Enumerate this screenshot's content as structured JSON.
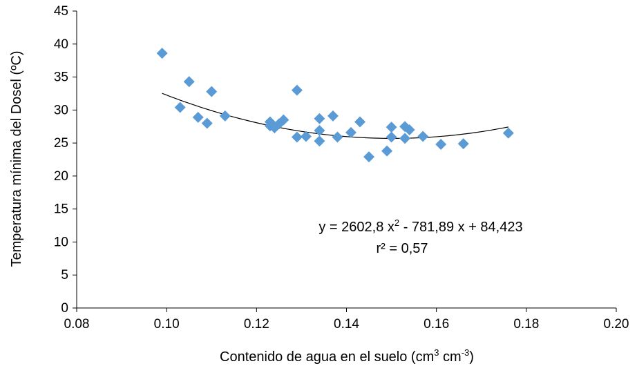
{
  "chart_data": {
    "type": "scatter",
    "title": "",
    "xlabel": {
      "prefix": "Contenido de agua en el suelo (cm",
      "sup1": "3",
      "mid": " cm",
      "sup2": "-3",
      "suffix": ")"
    },
    "ylabel": "Temperatura mínima del Dosel (ºC)",
    "xlim": [
      0.08,
      0.2
    ],
    "ylim": [
      0,
      45
    ],
    "x_ticks": [
      0.08,
      0.1,
      0.12,
      0.14,
      0.16,
      0.18,
      0.2
    ],
    "x_tick_labels": [
      "0.08",
      "0.10",
      "0.12",
      "0.14",
      "0.16",
      "0.18",
      "0.20"
    ],
    "y_ticks": [
      0,
      5,
      10,
      15,
      20,
      25,
      30,
      35,
      40,
      45
    ],
    "y_tick_labels": [
      "0",
      "5",
      "10",
      "15",
      "20",
      "25",
      "30",
      "35",
      "40",
      "45"
    ],
    "grid": false,
    "marker": {
      "shape": "diamond",
      "color": "#5b9bd5"
    },
    "trendline": {
      "type": "polynomial-2",
      "coefficients": {
        "a": 2602.8,
        "b": -781.89,
        "c": 84.423
      },
      "x_range": [
        0.099,
        0.176
      ],
      "color": "#000000"
    },
    "equation": {
      "part1": "y = 2602,8 x",
      "sup": "2",
      "part2": " - 781,89 x + 84,423",
      "r2": "r² = 0,57"
    },
    "points": [
      {
        "x": 0.099,
        "y": 38.6
      },
      {
        "x": 0.103,
        "y": 30.4
      },
      {
        "x": 0.105,
        "y": 34.3
      },
      {
        "x": 0.107,
        "y": 28.9
      },
      {
        "x": 0.109,
        "y": 28.0
      },
      {
        "x": 0.11,
        "y": 32.8
      },
      {
        "x": 0.113,
        "y": 29.1
      },
      {
        "x": 0.123,
        "y": 28.2
      },
      {
        "x": 0.123,
        "y": 27.6
      },
      {
        "x": 0.124,
        "y": 27.3
      },
      {
        "x": 0.125,
        "y": 27.9
      },
      {
        "x": 0.126,
        "y": 28.5
      },
      {
        "x": 0.129,
        "y": 33.0
      },
      {
        "x": 0.129,
        "y": 25.9
      },
      {
        "x": 0.131,
        "y": 26.0
      },
      {
        "x": 0.134,
        "y": 28.7
      },
      {
        "x": 0.134,
        "y": 26.9
      },
      {
        "x": 0.134,
        "y": 25.3
      },
      {
        "x": 0.137,
        "y": 29.1
      },
      {
        "x": 0.138,
        "y": 25.9
      },
      {
        "x": 0.141,
        "y": 26.6
      },
      {
        "x": 0.143,
        "y": 28.2
      },
      {
        "x": 0.145,
        "y": 22.9
      },
      {
        "x": 0.149,
        "y": 23.8
      },
      {
        "x": 0.15,
        "y": 27.4
      },
      {
        "x": 0.15,
        "y": 25.9
      },
      {
        "x": 0.153,
        "y": 27.5
      },
      {
        "x": 0.153,
        "y": 25.7
      },
      {
        "x": 0.154,
        "y": 27.0
      },
      {
        "x": 0.157,
        "y": 26.0
      },
      {
        "x": 0.161,
        "y": 24.8
      },
      {
        "x": 0.166,
        "y": 24.9
      },
      {
        "x": 0.176,
        "y": 26.5
      }
    ]
  }
}
